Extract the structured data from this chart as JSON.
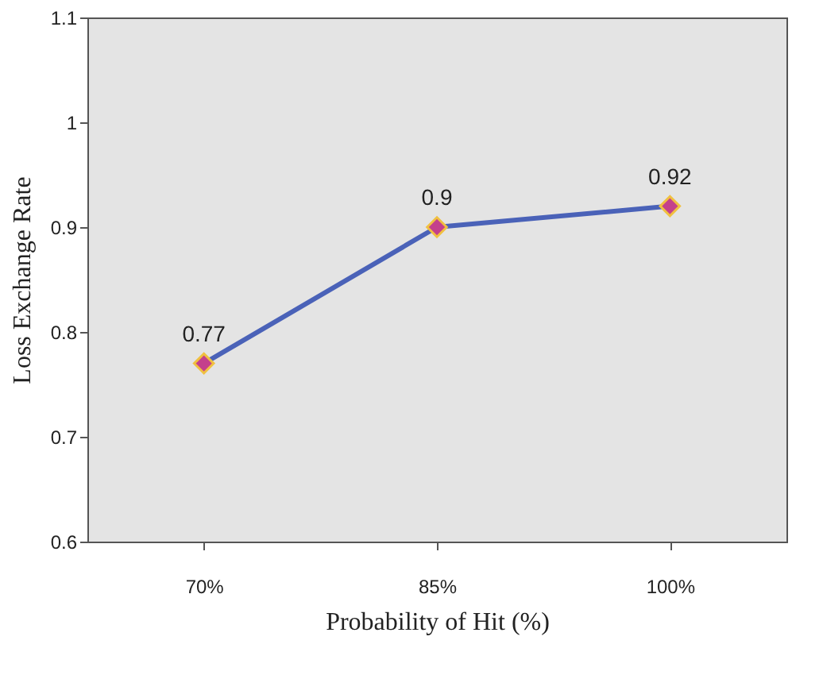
{
  "chart_data": {
    "type": "line",
    "xlabel": "Probability of Hit (%)",
    "ylabel": "Loss Exchange Rate",
    "categories": [
      "70%",
      "85%",
      "100%"
    ],
    "series": [
      {
        "color": "#4a62b8",
        "colors": [
          "#c4408c",
          "#c4408c",
          "#c4408c"
        ],
        "values": [
          0.77,
          0.9,
          0.92
        ]
      }
    ],
    "ylim": [
      0.6,
      1.1
    ],
    "yticks": [
      0.6,
      0.7,
      0.8,
      0.9,
      1,
      1.1
    ],
    "marker": "diamond",
    "line_style": "solid",
    "data_labels": true,
    "grid": false
  }
}
